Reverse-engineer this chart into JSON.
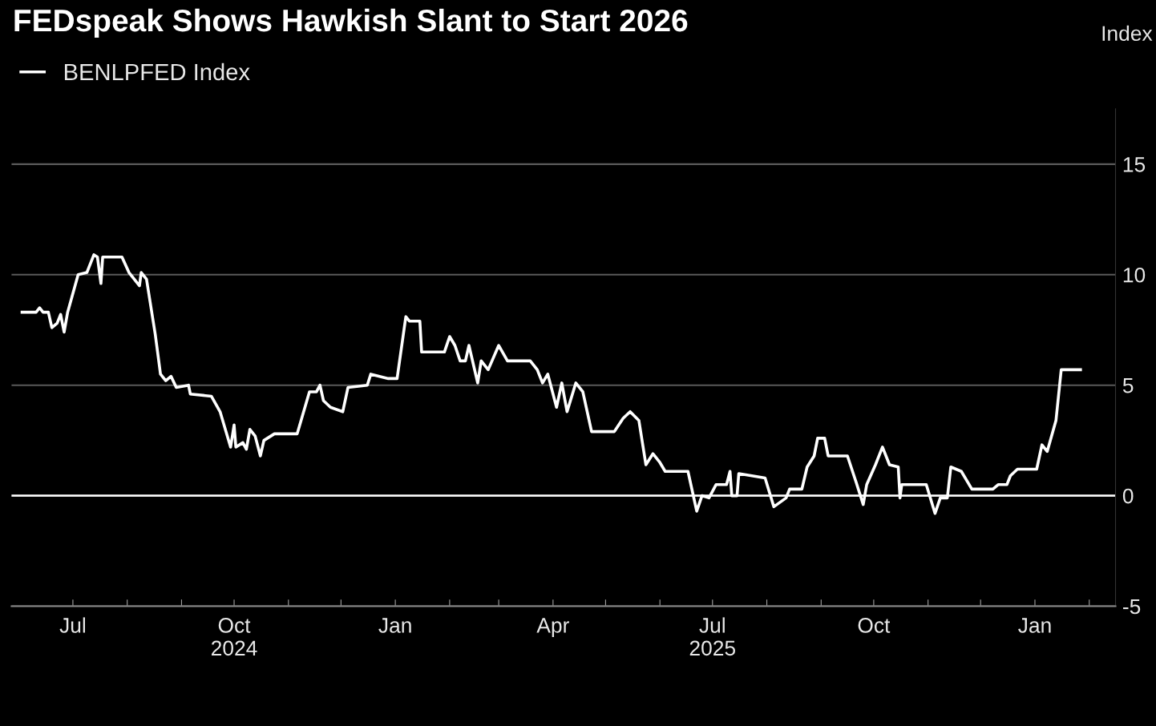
{
  "chart_data": {
    "type": "line",
    "title": "FEDspeak Shows Hawkish Slant to Start 2026",
    "ylabel": "Index",
    "series": [
      {
        "name": "BENLPFED Index",
        "color": "#ffffff",
        "x": [
          "2024-06-02",
          "2024-06-10",
          "2024-06-12",
          "2024-06-14",
          "2024-06-17",
          "2024-06-19",
          "2024-06-22",
          "2024-06-24",
          "2024-06-26",
          "2024-06-28",
          "2024-07-04",
          "2024-07-09",
          "2024-07-13",
          "2024-07-15",
          "2024-07-17",
          "2024-07-18",
          "2024-07-29",
          "2024-08-02",
          "2024-08-08",
          "2024-08-09",
          "2024-08-12",
          "2024-08-17",
          "2024-08-20",
          "2024-08-23",
          "2024-08-26",
          "2024-08-29",
          "2024-09-05",
          "2024-09-06",
          "2024-09-18",
          "2024-09-23",
          "2024-09-29",
          "2024-10-01",
          "2024-10-02",
          "2024-10-06",
          "2024-10-08",
          "2024-10-10",
          "2024-10-13",
          "2024-10-16",
          "2024-10-18",
          "2024-10-24",
          "2024-11-06",
          "2024-11-13",
          "2024-11-17",
          "2024-11-19",
          "2024-11-21",
          "2024-11-25",
          "2024-12-02",
          "2024-12-05",
          "2024-12-16",
          "2024-12-18",
          "2024-12-28",
          "2025-01-02",
          "2025-01-07",
          "2025-01-09",
          "2025-01-15",
          "2025-01-16",
          "2025-01-29",
          "2025-02-01",
          "2025-02-04",
          "2025-02-07",
          "2025-02-10",
          "2025-02-12",
          "2025-02-17",
          "2025-02-19",
          "2025-02-23",
          "2025-03-01",
          "2025-03-06",
          "2025-03-19",
          "2025-03-23",
          "2025-03-26",
          "2025-03-29",
          "2025-04-03",
          "2025-04-06",
          "2025-04-09",
          "2025-04-14",
          "2025-04-18",
          "2025-04-23",
          "2025-05-06",
          "2025-05-11",
          "2025-05-15",
          "2025-05-20",
          "2025-05-24",
          "2025-05-28",
          "2025-06-01",
          "2025-06-04",
          "2025-06-17",
          "2025-06-22",
          "2025-06-25",
          "2025-06-29",
          "2025-07-03",
          "2025-07-09",
          "2025-07-11",
          "2025-07-12",
          "2025-07-15",
          "2025-07-16",
          "2025-07-31",
          "2025-08-05",
          "2025-08-12",
          "2025-08-14",
          "2025-08-21",
          "2025-08-24",
          "2025-08-28",
          "2025-08-30",
          "2025-09-03",
          "2025-09-05",
          "2025-09-16",
          "2025-09-21",
          "2025-09-25",
          "2025-09-27",
          "2025-10-02",
          "2025-10-06",
          "2025-10-10",
          "2025-10-15",
          "2025-10-16",
          "2025-10-17",
          "2025-10-31",
          "2025-11-05",
          "2025-11-08",
          "2025-11-12",
          "2025-11-14",
          "2025-11-20",
          "2025-11-26",
          "2025-12-08",
          "2025-12-11",
          "2025-12-16",
          "2025-12-18",
          "2025-12-22",
          "2026-01-02",
          "2026-01-05",
          "2026-01-08",
          "2026-01-13",
          "2026-01-16",
          "2026-01-27"
        ],
        "values": [
          8.3,
          8.3,
          8.5,
          8.3,
          8.3,
          7.6,
          7.8,
          8.2,
          7.4,
          8.3,
          10.0,
          10.1,
          10.9,
          10.8,
          9.6,
          10.8,
          10.8,
          10.1,
          9.5,
          10.1,
          9.8,
          7.3,
          5.5,
          5.2,
          5.4,
          4.9,
          5.0,
          4.6,
          4.5,
          3.8,
          2.2,
          3.2,
          2.2,
          2.4,
          2.1,
          3.0,
          2.7,
          1.8,
          2.5,
          2.8,
          2.8,
          4.7,
          4.7,
          5.0,
          4.3,
          4.0,
          3.8,
          4.9,
          5.0,
          5.5,
          5.3,
          5.3,
          8.1,
          7.9,
          7.9,
          6.5,
          6.5,
          7.2,
          6.8,
          6.1,
          6.1,
          6.8,
          5.1,
          6.1,
          5.7,
          6.8,
          6.1,
          6.1,
          5.7,
          5.1,
          5.5,
          4.0,
          5.1,
          3.8,
          5.1,
          4.7,
          2.9,
          2.9,
          3.5,
          3.8,
          3.4,
          1.4,
          1.9,
          1.5,
          1.1,
          1.1,
          -0.7,
          0.0,
          -0.1,
          0.5,
          0.5,
          1.1,
          0.0,
          0.0,
          1.0,
          0.8,
          -0.5,
          -0.1,
          0.3,
          0.3,
          1.3,
          1.8,
          2.6,
          2.6,
          1.8,
          1.8,
          0.6,
          -0.4,
          0.5,
          1.4,
          2.2,
          1.4,
          1.3,
          -0.1,
          0.5,
          0.5,
          -0.8,
          -0.1,
          -0.1,
          1.3,
          1.1,
          0.3,
          0.3,
          0.5,
          0.5,
          0.9,
          1.2,
          1.2,
          2.3,
          2.0,
          3.4,
          5.7,
          5.7
        ]
      }
    ],
    "xlim": [
      "2024-05-27",
      "2026-02-16"
    ],
    "xticks": [
      {
        "value": "2024-07-01",
        "label": "Jul"
      },
      {
        "value": "2024-08-01",
        "label": null
      },
      {
        "value": "2024-09-01",
        "label": null
      },
      {
        "value": "2024-10-01",
        "label": "Oct\n2024"
      },
      {
        "value": "2024-11-01",
        "label": null
      },
      {
        "value": "2024-12-01",
        "label": null
      },
      {
        "value": "2025-01-01",
        "label": "Jan"
      },
      {
        "value": "2025-02-01",
        "label": null
      },
      {
        "value": "2025-03-01",
        "label": null
      },
      {
        "value": "2025-04-01",
        "label": "Apr"
      },
      {
        "value": "2025-05-01",
        "label": null
      },
      {
        "value": "2025-06-01",
        "label": null
      },
      {
        "value": "2025-07-01",
        "label": "Jul\n2025"
      },
      {
        "value": "2025-08-01",
        "label": null
      },
      {
        "value": "2025-09-01",
        "label": null
      },
      {
        "value": "2025-10-01",
        "label": "Oct"
      },
      {
        "value": "2025-11-01",
        "label": null
      },
      {
        "value": "2025-12-01",
        "label": null
      },
      {
        "value": "2026-01-01",
        "label": "Jan"
      },
      {
        "value": "2026-02-01",
        "label": null
      }
    ],
    "ylim": [
      -5,
      17.5
    ],
    "yticks": [
      -5,
      0,
      5,
      10,
      15
    ],
    "grid": "y",
    "legend": "top left",
    "line_style": "solid",
    "marker": "none",
    "ref_lines": [
      {
        "axis": "y",
        "value": 0,
        "color": "#ffffff",
        "line_style": "solid"
      }
    ]
  }
}
